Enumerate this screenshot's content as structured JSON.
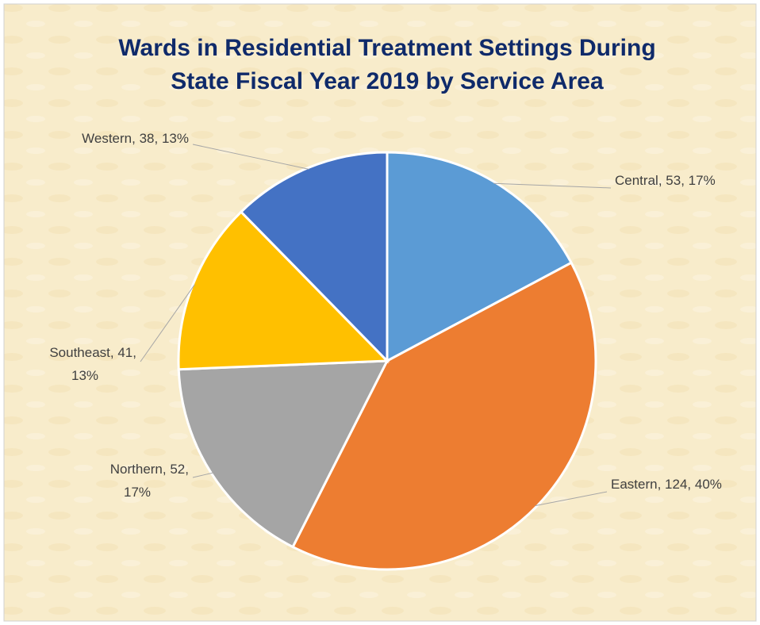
{
  "chart_data": {
    "type": "pie",
    "title": [
      "Wards in Residential Treatment Settings During",
      "State Fiscal Year 2019 by Service Area"
    ],
    "categories": [
      "Central",
      "Eastern",
      "Northern",
      "Southeast",
      "Western"
    ],
    "values": [
      53,
      124,
      52,
      41,
      38
    ],
    "percent_labels": [
      "17%",
      "40%",
      "17%",
      "13%",
      "13%"
    ],
    "colors": [
      "#5b9bd5",
      "#ed7d31",
      "#a5a5a5",
      "#ffc000",
      "#4472c4"
    ]
  }
}
